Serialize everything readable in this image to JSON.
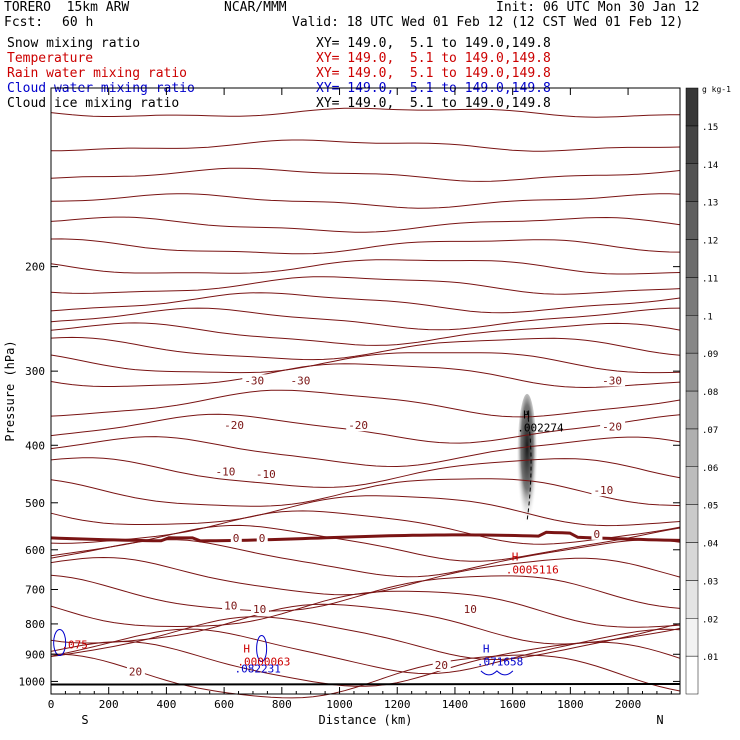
{
  "header": {
    "model": "TORERO  15km ARW",
    "org": "NCAR/MMM",
    "init": "Init: 06 UTC Mon 30 Jan 12",
    "fcst_label": "Fcst:",
    "fcst_value": "60 h",
    "valid": "Valid: 18 UTC Wed 01 Feb 12 (12 CST Wed 01 Feb 12)"
  },
  "legend": {
    "fields": [
      {
        "label": "Snow mixing ratio",
        "xy": "XY= 149.0,  5.1 to 149.0,149.8",
        "color": "#000000"
      },
      {
        "label": "Temperature",
        "xy": "XY= 149.0,  5.1 to 149.0,149.8",
        "color": "#cc0000"
      },
      {
        "label": "Rain water mixing ratio",
        "xy": "XY= 149.0,  5.1 to 149.0,149.8",
        "color": "#cc0000"
      },
      {
        "label": "Cloud water mixing ratio",
        "xy": "XY= 149.0,  5.1 to 149.0,149.8",
        "color": "#0000cc"
      },
      {
        "label": "Cloud ice mixing ratio",
        "xy": "XY= 149.0,  5.1 to 149.0,149.8",
        "color": "#000000"
      }
    ]
  },
  "chart_data": {
    "type": "contour",
    "xlabel": "Distance (km)",
    "ylabel": "Pressure (hPa)",
    "xlim": [
      0,
      2180
    ],
    "ylim": [
      1050,
      100
    ],
    "y_scale": "log",
    "x_ticks": [
      0,
      200,
      400,
      600,
      800,
      1000,
      1200,
      1400,
      1600,
      1800,
      2000
    ],
    "x_tick_labels": [
      "0",
      "200",
      "400",
      "600",
      "800",
      "1000",
      "1200",
      "1400",
      "1600",
      "1800",
      "2000"
    ],
    "y_ticks": [
      200,
      300,
      400,
      500,
      600,
      700,
      800,
      900,
      1000
    ],
    "y_tick_labels": [
      "200",
      "300",
      "400",
      "500",
      "600",
      "700",
      "800",
      "900",
      "1000"
    ],
    "ends": {
      "left": "S",
      "right": "N"
    },
    "temperature_labels": [
      {
        "text": "-30",
        "x": 670,
        "p": 311
      },
      {
        "text": "-30",
        "x": 830,
        "p": 311
      },
      {
        "text": "-30",
        "x": 1910,
        "p": 311
      },
      {
        "text": "-20",
        "x": 600,
        "p": 370
      },
      {
        "text": "-20",
        "x": 1030,
        "p": 370
      },
      {
        "text": "-20",
        "x": 1910,
        "p": 372
      },
      {
        "text": "-10",
        "x": 570,
        "p": 443
      },
      {
        "text": "-10",
        "x": 710,
        "p": 447
      },
      {
        "text": "-10",
        "x": 1880,
        "p": 476
      },
      {
        "text": "0",
        "x": 630,
        "p": 573
      },
      {
        "text": "0",
        "x": 720,
        "p": 573
      },
      {
        "text": "0",
        "x": 1880,
        "p": 564
      },
      {
        "text": "10",
        "x": 600,
        "p": 745
      },
      {
        "text": "10",
        "x": 700,
        "p": 755
      },
      {
        "text": "10",
        "x": 1430,
        "p": 755
      },
      {
        "text": "20",
        "x": 270,
        "p": 963
      },
      {
        "text": "20",
        "x": 1330,
        "p": 938
      }
    ],
    "maxima": [
      {
        "field": "Snow mixing ratio",
        "marker": "H",
        "x": 1630,
        "p": 375,
        "value": ".002274",
        "color": "#000000"
      },
      {
        "field": "Rain water mixing ratio",
        "marker": "H",
        "x": 1590,
        "p": 650,
        "value": ".0005116",
        "color": "#cc0000"
      },
      {
        "field": "Rain water mixing ratio",
        "marker": "H",
        "x": 660,
        "p": 930,
        "value": ".0000063",
        "color": "#cc0000"
      },
      {
        "field": "Cloud water mixing ratio",
        "marker": "H",
        "x": 1490,
        "p": 930,
        "value": ".071658",
        "color": "#0000cc"
      },
      {
        "field": "Cloud water mixing ratio",
        "marker": "",
        "x": 650,
        "p": 955,
        "value": ".082231",
        "color": "#0000cc"
      },
      {
        "field": "Cloud water mixing ratio",
        "marker": "",
        "x": 50,
        "p": 870,
        "value": ".075",
        "color": "#cc0000"
      }
    ],
    "colorbar": {
      "unit": "g kg-1",
      "ticks": [
        0.01,
        0.02,
        0.03,
        0.04,
        0.05,
        0.06,
        0.07,
        0.08,
        0.09,
        0.1,
        0.11,
        0.12,
        0.13,
        0.14,
        0.15
      ],
      "tick_labels": [
        ".01",
        ".02",
        ".03",
        ".04",
        ".05",
        ".06",
        ".07",
        ".08",
        ".09",
        ".1",
        ".11",
        ".12",
        ".13",
        ".14",
        ".15"
      ],
      "range": [
        0,
        0.16
      ]
    }
  }
}
